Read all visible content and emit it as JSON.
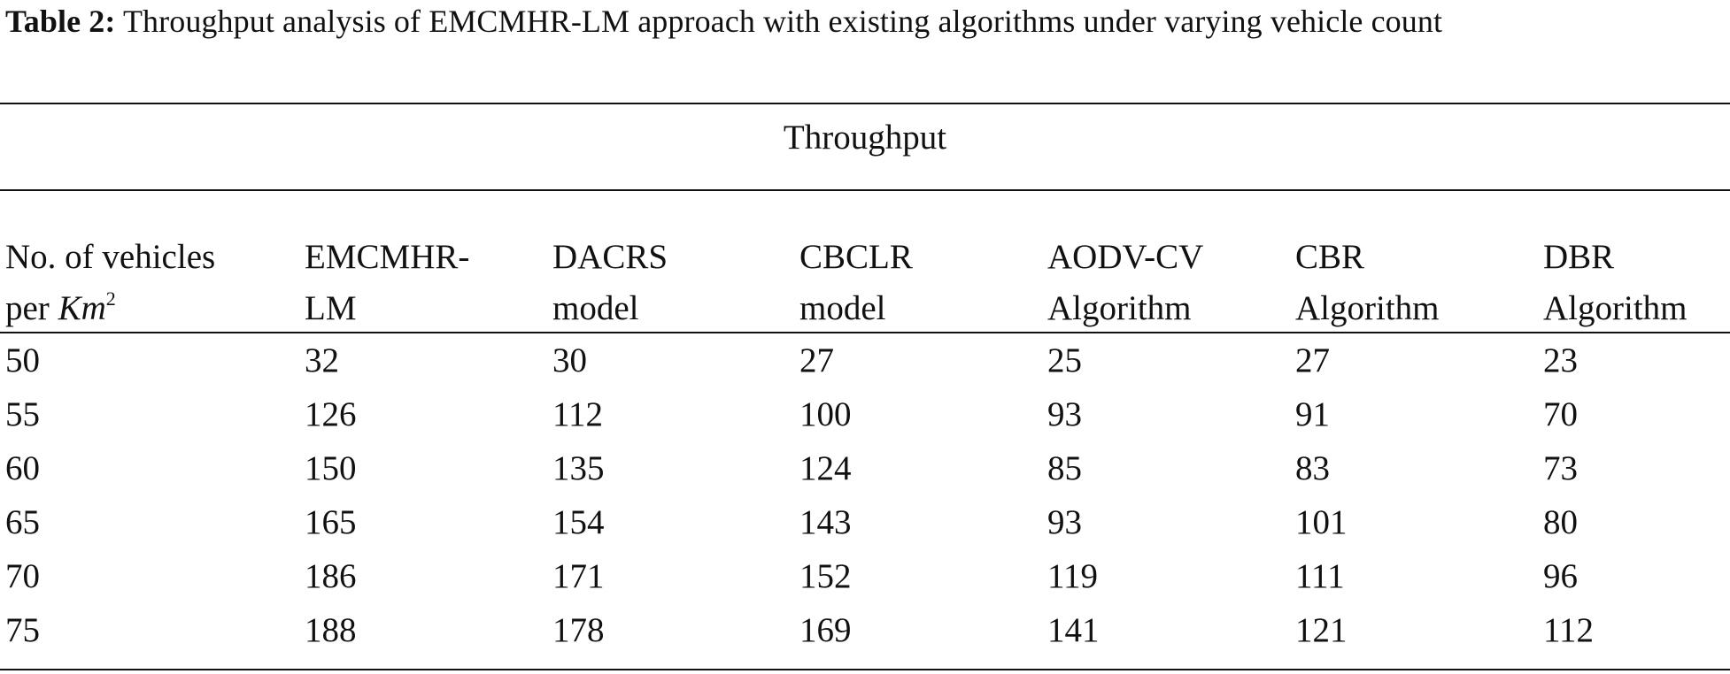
{
  "caption": {
    "label": "Table 2:",
    "text": " Throughput analysis of EMCMHR-LM approach with existing algorithms under varying vehicle count"
  },
  "group_header": "Throughput",
  "columns": [
    {
      "line1": "No. of vehicles",
      "line2_prefix": "per ",
      "line2_italic": "Km",
      "line2_sup": "2"
    },
    {
      "line1": "EMCMHR-",
      "line2": "LM"
    },
    {
      "line1": "DACRS",
      "line2": "model"
    },
    {
      "line1": "CBCLR",
      "line2": "model"
    },
    {
      "line1": "AODV-CV",
      "line2": "Algorithm"
    },
    {
      "line1": "CBR",
      "line2": "Algorithm"
    },
    {
      "line1": "DBR",
      "line2": "Algorithm"
    }
  ],
  "rows": [
    [
      "50",
      "32",
      "30",
      "27",
      "25",
      "27",
      "23"
    ],
    [
      "55",
      "126",
      "112",
      "100",
      "93",
      "91",
      "70"
    ],
    [
      "60",
      "150",
      "135",
      "124",
      "85",
      "83",
      "73"
    ],
    [
      "65",
      "165",
      "154",
      "143",
      "93",
      "101",
      "80"
    ],
    [
      "70",
      "186",
      "171",
      "152",
      "119",
      "111",
      "96"
    ],
    [
      "75",
      "188",
      "178",
      "169",
      "141",
      "121",
      "112"
    ]
  ]
}
